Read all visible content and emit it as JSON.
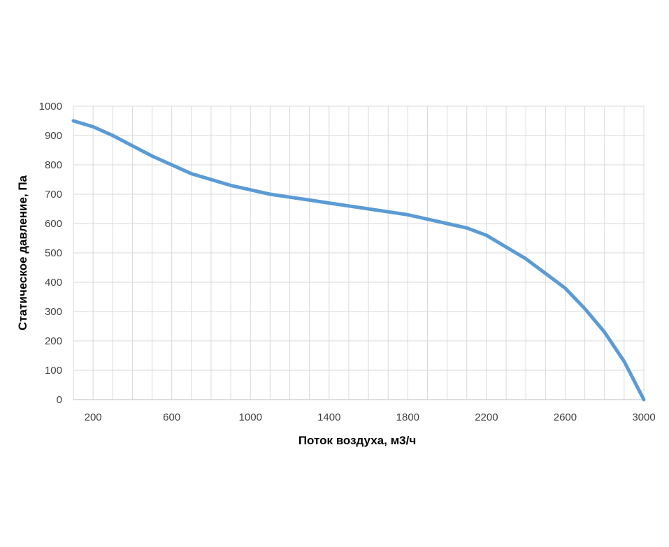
{
  "chart_data": {
    "type": "line",
    "title": "",
    "xlabel": "Поток воздуха, м3/ч",
    "ylabel": "Статическое давление, Па",
    "xlim": [
      100,
      3000
    ],
    "ylim": [
      0,
      1000
    ],
    "x_ticks": [
      200,
      600,
      1000,
      1400,
      1800,
      2200,
      2600,
      3000
    ],
    "y_ticks": [
      0,
      100,
      200,
      300,
      400,
      500,
      600,
      700,
      800,
      900,
      1000
    ],
    "x_gridlines": [
      100,
      200,
      300,
      400,
      500,
      600,
      700,
      800,
      900,
      1000,
      1100,
      1200,
      1300,
      1400,
      1500,
      1600,
      1700,
      1800,
      1900,
      2000,
      2100,
      2200,
      2300,
      2400,
      2500,
      2600,
      2700,
      2800,
      2900,
      3000
    ],
    "grid": true,
    "legend": "none",
    "series": [
      {
        "color": "#5b9bd5",
        "x": [
          100,
          200,
          300,
          400,
          500,
          600,
          700,
          800,
          900,
          1000,
          1100,
          1200,
          1300,
          1400,
          1500,
          1600,
          1700,
          1800,
          1900,
          2000,
          2100,
          2200,
          2300,
          2400,
          2500,
          2600,
          2700,
          2800,
          2900,
          3000
        ],
        "y": [
          950,
          930,
          900,
          865,
          830,
          800,
          770,
          750,
          730,
          715,
          700,
          690,
          680,
          670,
          660,
          650,
          640,
          630,
          615,
          600,
          585,
          560,
          520,
          480,
          430,
          380,
          310,
          230,
          130,
          0
        ]
      }
    ]
  }
}
